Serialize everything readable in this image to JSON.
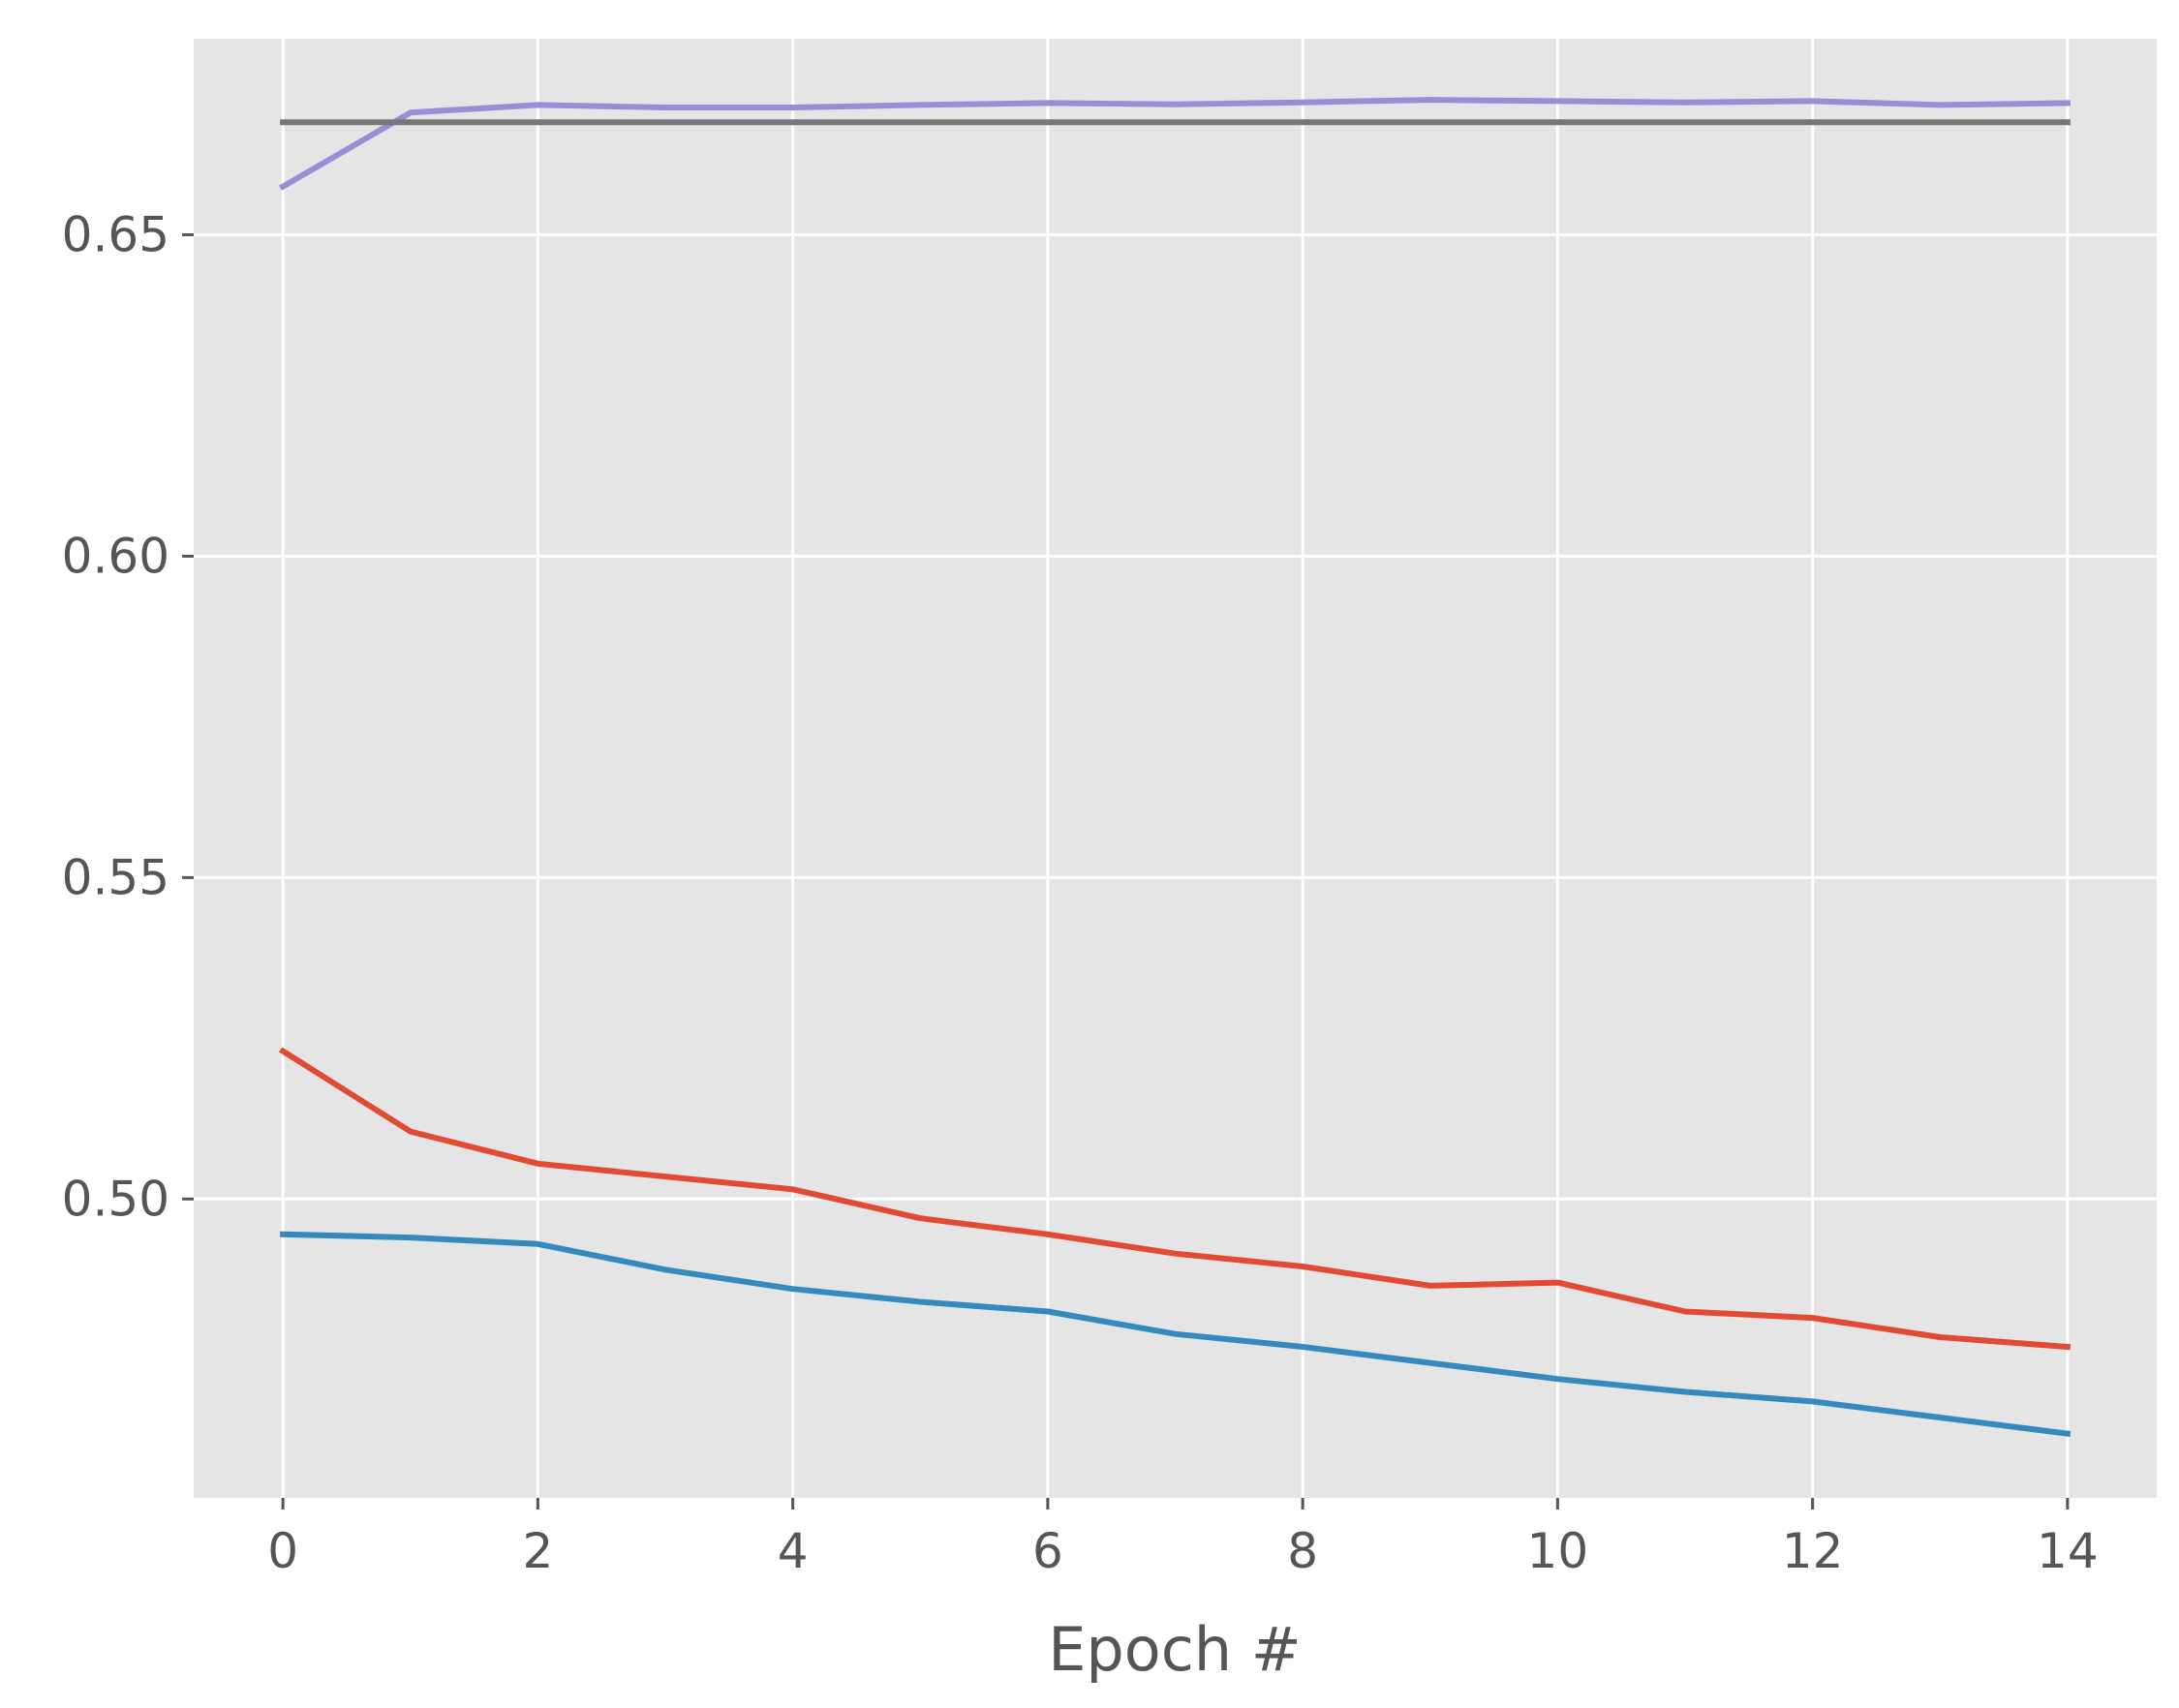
{
  "chart_data": {
    "type": "line",
    "style": "ggplot",
    "title": "",
    "xlabel": "Epoch #",
    "ylabel": "",
    "xlim": [
      -0.7,
      14.7
    ],
    "ylim": [
      0.4535,
      0.6805
    ],
    "xticks": [
      0,
      2,
      4,
      6,
      8,
      10,
      12,
      14
    ],
    "xtick_labels": [
      "0",
      "2",
      "4",
      "6",
      "8",
      "10",
      "12",
      "14"
    ],
    "yticks": [
      0.5,
      0.55,
      0.6,
      0.65
    ],
    "ytick_labels": [
      "0.50",
      "0.55",
      "0.60",
      "0.65"
    ],
    "grid": true,
    "background": "#e5e5e5",
    "x": [
      0,
      1,
      2,
      3,
      4,
      5,
      6,
      7,
      8,
      9,
      10,
      11,
      12,
      13,
      14
    ],
    "series": [
      {
        "color": "#e24a33",
        "values": [
          0.523,
          0.5105,
          0.5055,
          0.5035,
          0.5015,
          0.497,
          0.4945,
          0.4915,
          0.4895,
          0.4865,
          0.487,
          0.4825,
          0.4815,
          0.4785,
          0.477
        ]
      },
      {
        "color": "#348abd",
        "values": [
          0.4945,
          0.494,
          0.493,
          0.489,
          0.486,
          0.484,
          0.4825,
          0.479,
          0.477,
          0.4745,
          0.472,
          0.47,
          0.4685,
          0.466,
          0.4635
        ]
      },
      {
        "color": "#988ed5",
        "values": [
          0.6575,
          0.669,
          0.6702,
          0.6698,
          0.6698,
          0.6702,
          0.6705,
          0.6703,
          0.6706,
          0.671,
          0.6708,
          0.6706,
          0.6708,
          0.6702,
          0.6705
        ]
      },
      {
        "color": "#777777",
        "values": [
          0.6675,
          0.6675,
          0.6675,
          0.6675,
          0.6675,
          0.6675,
          0.6675,
          0.6675,
          0.6675,
          0.6675,
          0.6675,
          0.6675,
          0.6675,
          0.6675,
          0.6675
        ]
      }
    ]
  }
}
